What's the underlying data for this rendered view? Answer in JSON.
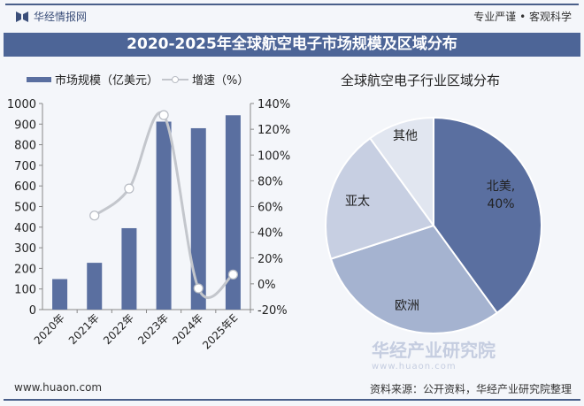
{
  "header": {
    "brand": "华经情报网",
    "slogan": "专业严谨 • 客观科学",
    "title": "2020-2025年全球航空电子市场规模及区域分布"
  },
  "legend": {
    "bar_label": "市场规模（亿美元）",
    "line_label": "增速（%）"
  },
  "pie_title": "全球航空电子行业区域分布",
  "watermark": {
    "name": "华经产业研究院",
    "url": "www.huaon.com"
  },
  "footer": {
    "url": "www.huaon.com",
    "source": "资料来源：公开资料，华经产业研究院整理"
  },
  "chart_data": [
    {
      "type": "bar+line",
      "categories": [
        "2020年",
        "2021年",
        "2022年",
        "2023年",
        "2024年",
        "2025年E"
      ],
      "series": [
        {
          "name": "市场规模（亿美元）",
          "type": "bar",
          "axis": "left",
          "values": [
            148,
            227,
            395,
            912,
            880,
            943
          ],
          "color": "#5a6fa0"
        },
        {
          "name": "增速（%）",
          "type": "line",
          "axis": "right",
          "values": [
            null,
            53,
            74,
            131,
            -3.5,
            7.2
          ],
          "color": "#c3c6cc"
        }
      ],
      "ylim_left": [
        0,
        1000
      ],
      "yticks_left": [
        "0",
        "100",
        "200",
        "300",
        "400",
        "500",
        "600",
        "700",
        "800",
        "900",
        "1000"
      ],
      "ylim_right": [
        -20,
        140
      ],
      "yticks_right": [
        "-20%",
        "0%",
        "20%",
        "40%",
        "60%",
        "80%",
        "100%",
        "120%",
        "140%"
      ],
      "legend_position": "top",
      "grid": false
    },
    {
      "type": "pie",
      "title": "全球航空电子行业区域分布",
      "slices": [
        {
          "label": "北美",
          "value": 40,
          "value_label": "40%",
          "color": "#5a6fa0"
        },
        {
          "label": "欧洲",
          "value": 30,
          "color": "#a5b3d0"
        },
        {
          "label": "亚太",
          "value": 20,
          "color": "#c7cfe2"
        },
        {
          "label": "其他",
          "value": 10,
          "color": "#e1e6f0"
        }
      ]
    }
  ]
}
